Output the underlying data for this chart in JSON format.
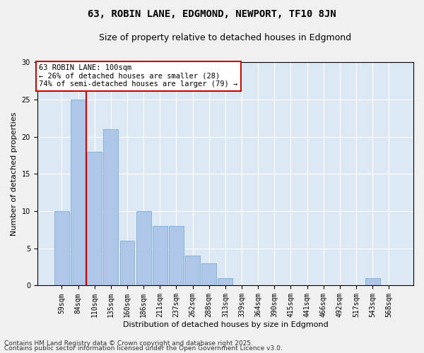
{
  "title1": "63, ROBIN LANE, EDGMOND, NEWPORT, TF10 8JN",
  "title2": "Size of property relative to detached houses in Edgmond",
  "xlabel": "Distribution of detached houses by size in Edgmond",
  "ylabel": "Number of detached properties",
  "categories": [
    "59sqm",
    "84sqm",
    "110sqm",
    "135sqm",
    "160sqm",
    "186sqm",
    "211sqm",
    "237sqm",
    "262sqm",
    "288sqm",
    "313sqm",
    "339sqm",
    "364sqm",
    "390sqm",
    "415sqm",
    "441sqm",
    "466sqm",
    "492sqm",
    "517sqm",
    "543sqm",
    "568sqm"
  ],
  "values": [
    10,
    25,
    18,
    21,
    6,
    10,
    8,
    8,
    4,
    3,
    1,
    0,
    0,
    0,
    0,
    0,
    0,
    0,
    0,
    1,
    0
  ],
  "bar_color": "#aec6e8",
  "bar_edge_color": "#7aafd4",
  "background_color": "#dde8f5",
  "grid_color": "#ffffff",
  "vline_x": 1.5,
  "vline_color": "#cc0000",
  "annotation_title": "63 ROBIN LANE: 100sqm",
  "annotation_line1": "← 26% of detached houses are smaller (28)",
  "annotation_line2": "74% of semi-detached houses are larger (79) →",
  "annotation_box_color": "#ffffff",
  "annotation_border_color": "#cc0000",
  "ylim": [
    0,
    30
  ],
  "yticks": [
    0,
    5,
    10,
    15,
    20,
    25,
    30
  ],
  "footer1": "Contains HM Land Registry data © Crown copyright and database right 2025.",
  "footer2": "Contains public sector information licensed under the Open Government Licence v3.0.",
  "title_fontsize": 10,
  "subtitle_fontsize": 9,
  "axis_label_fontsize": 8,
  "tick_fontsize": 7,
  "annotation_fontsize": 7.5,
  "footer_fontsize": 6.5,
  "fig_width": 6.0,
  "fig_height": 5.0,
  "fig_dpi": 100
}
